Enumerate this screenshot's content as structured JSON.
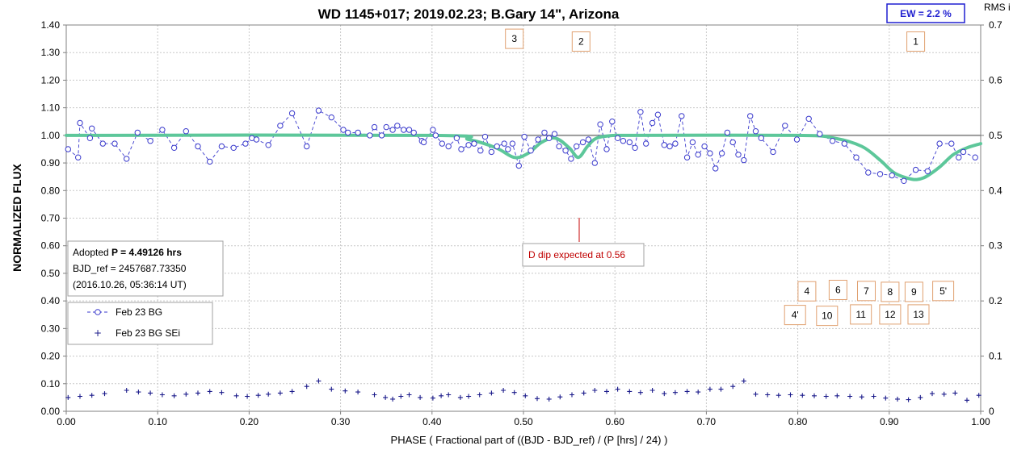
{
  "chart_data": {
    "type": "scatter",
    "title": "WD 1145+017; 2019.02.23; B.Gary 14\", Arizona",
    "xlabel": "PHASE ( Fractional part of ((BJD - BJD_ref) / (P [hrs] / 24) )",
    "ylabel": "NORMALIZED FLUX",
    "y2label": "RMS i",
    "xlim": [
      0,
      1
    ],
    "ylim": [
      0,
      1.4
    ],
    "y2lim": [
      0,
      0.7
    ],
    "x_ticks": [
      "0.00",
      "0.10",
      "0.20",
      "0.30",
      "0.40",
      "0.50",
      "0.60",
      "0.70",
      "0.80",
      "0.90",
      "1.00"
    ],
    "y_ticks": [
      "0.00",
      "0.10",
      "0.20",
      "0.30",
      "0.40",
      "0.50",
      "0.60",
      "0.70",
      "0.80",
      "0.90",
      "1.00",
      "1.10",
      "1.20",
      "1.30",
      "1.40"
    ],
    "y2_ticks": [
      "0",
      "0.1",
      "0.2",
      "0.3",
      "0.4",
      "0.5",
      "0.6",
      "0.7"
    ],
    "grid": true,
    "ew_label": "EW =  2.2 %",
    "info_box": {
      "line1_prefix": "Adopted ",
      "line1_bold": "P = 4.49126 hrs",
      "line2": "BJD_ref = 2457687.73350",
      "line3": "(2016.10.26, 05:36:14 UT)"
    },
    "dip_annotation": {
      "text": "D dip expected at 0.56",
      "x": 0.56
    },
    "dip_labels": [
      {
        "text": "3",
        "x": 0.49,
        "y": 1.35
      },
      {
        "text": "2",
        "x": 0.563,
        "y": 1.34
      },
      {
        "text": "1",
        "x": 0.929,
        "y": 1.34
      },
      {
        "text": "4",
        "x": 0.81,
        "y": 0.435
      },
      {
        "text": "6",
        "x": 0.844,
        "y": 0.44
      },
      {
        "text": "7",
        "x": 0.875,
        "y": 0.436
      },
      {
        "text": "8",
        "x": 0.901,
        "y": 0.433
      },
      {
        "text": "9",
        "x": 0.927,
        "y": 0.433
      },
      {
        "text": "5'",
        "x": 0.959,
        "y": 0.436
      },
      {
        "text": "4'",
        "x": 0.797,
        "y": 0.349
      },
      {
        "text": "10",
        "x": 0.832,
        "y": 0.346
      },
      {
        "text": "11",
        "x": 0.869,
        "y": 0.351
      },
      {
        "text": "12",
        "x": 0.901,
        "y": 0.351
      },
      {
        "text": "13",
        "x": 0.932,
        "y": 0.351
      }
    ],
    "legend": {
      "position": "left",
      "entries": [
        "Feb 23 BG",
        "Feb 23 BG SEi"
      ]
    },
    "reference_line": 1.0,
    "series": [
      {
        "name": "Feb 23 BG",
        "axis": "left",
        "style": "dashed-open-circles",
        "color": "#3a3acc",
        "x": [
          0.002,
          0.013,
          0.015,
          0.026,
          0.028,
          0.04,
          0.053,
          0.066,
          0.078,
          0.092,
          0.105,
          0.118,
          0.131,
          0.144,
          0.157,
          0.17,
          0.183,
          0.196,
          0.203,
          0.208,
          0.221,
          0.234,
          0.247,
          0.263,
          0.276,
          0.29,
          0.303,
          0.308,
          0.319,
          0.332,
          0.337,
          0.345,
          0.35,
          0.357,
          0.362,
          0.369,
          0.375,
          0.38,
          0.389,
          0.391,
          0.401,
          0.404,
          0.411,
          0.418,
          0.427,
          0.432,
          0.44,
          0.446,
          0.453,
          0.458,
          0.465,
          0.471,
          0.479,
          0.483,
          0.488,
          0.495,
          0.501,
          0.508,
          0.516,
          0.523,
          0.528,
          0.534,
          0.539,
          0.546,
          0.552,
          0.558,
          0.565,
          0.571,
          0.578,
          0.584,
          0.591,
          0.597,
          0.603,
          0.609,
          0.616,
          0.622,
          0.628,
          0.634,
          0.641,
          0.647,
          0.654,
          0.66,
          0.666,
          0.673,
          0.679,
          0.685,
          0.691,
          0.698,
          0.704,
          0.71,
          0.717,
          0.723,
          0.729,
          0.735,
          0.741,
          0.748,
          0.754,
          0.76,
          0.773,
          0.786,
          0.799,
          0.812,
          0.824,
          0.838,
          0.851,
          0.864,
          0.877,
          0.89,
          0.903,
          0.916,
          0.929,
          0.942,
          0.955,
          0.968,
          0.976,
          0.981,
          0.994
        ],
        "y": [
          0.95,
          0.92,
          1.045,
          0.99,
          1.025,
          0.97,
          0.97,
          0.915,
          1.01,
          0.98,
          1.02,
          0.955,
          1.015,
          0.96,
          0.905,
          0.96,
          0.955,
          0.97,
          0.99,
          0.985,
          0.965,
          1.035,
          1.08,
          0.96,
          1.09,
          1.065,
          1.02,
          1.01,
          1.01,
          1.0,
          1.03,
          1.0,
          1.03,
          1.02,
          1.035,
          1.02,
          1.02,
          1.01,
          0.98,
          0.975,
          1.02,
          1.0,
          0.97,
          0.96,
          0.99,
          0.95,
          0.965,
          0.97,
          0.945,
          0.995,
          0.94,
          0.96,
          0.97,
          0.95,
          0.97,
          0.89,
          0.995,
          0.945,
          0.985,
          1.01,
          0.99,
          1.005,
          0.96,
          0.945,
          0.915,
          0.96,
          0.975,
          0.985,
          0.9,
          1.04,
          0.95,
          1.05,
          0.99,
          0.98,
          0.975,
          0.955,
          1.085,
          0.97,
          1.045,
          1.075,
          0.965,
          0.96,
          0.97,
          1.07,
          0.92,
          0.975,
          0.93,
          0.96,
          0.935,
          0.88,
          0.935,
          1.01,
          0.975,
          0.93,
          0.91,
          1.07,
          1.015,
          0.99,
          0.94,
          1.035,
          0.985,
          1.06,
          1.005,
          0.98,
          0.97,
          0.92,
          0.865,
          0.86,
          0.855,
          0.835,
          0.875,
          0.87,
          0.97,
          0.97,
          0.92,
          0.94,
          0.92
        ]
      },
      {
        "name": "Feb 23 BG SEi",
        "axis": "right",
        "style": "plus-markers",
        "color": "#1a1a8a",
        "x": [
          0.002,
          0.015,
          0.028,
          0.042,
          0.066,
          0.079,
          0.092,
          0.105,
          0.118,
          0.131,
          0.144,
          0.157,
          0.17,
          0.186,
          0.198,
          0.21,
          0.221,
          0.234,
          0.247,
          0.263,
          0.276,
          0.29,
          0.305,
          0.319,
          0.337,
          0.349,
          0.357,
          0.366,
          0.375,
          0.387,
          0.401,
          0.41,
          0.418,
          0.431,
          0.44,
          0.452,
          0.465,
          0.478,
          0.49,
          0.502,
          0.515,
          0.528,
          0.54,
          0.553,
          0.566,
          0.578,
          0.591,
          0.603,
          0.616,
          0.628,
          0.641,
          0.654,
          0.666,
          0.679,
          0.691,
          0.704,
          0.716,
          0.729,
          0.741,
          0.754,
          0.767,
          0.779,
          0.792,
          0.805,
          0.818,
          0.831,
          0.843,
          0.857,
          0.87,
          0.883,
          0.896,
          0.909,
          0.921,
          0.934,
          0.947,
          0.96,
          0.972,
          0.985,
          0.998
        ],
        "y": [
          0.025,
          0.027,
          0.029,
          0.032,
          0.038,
          0.035,
          0.033,
          0.03,
          0.028,
          0.031,
          0.033,
          0.036,
          0.034,
          0.028,
          0.027,
          0.029,
          0.031,
          0.033,
          0.036,
          0.045,
          0.055,
          0.04,
          0.037,
          0.035,
          0.03,
          0.025,
          0.022,
          0.027,
          0.03,
          0.025,
          0.024,
          0.028,
          0.03,
          0.025,
          0.027,
          0.03,
          0.033,
          0.038,
          0.034,
          0.028,
          0.023,
          0.022,
          0.026,
          0.03,
          0.033,
          0.038,
          0.036,
          0.04,
          0.036,
          0.034,
          0.038,
          0.032,
          0.034,
          0.036,
          0.035,
          0.04,
          0.04,
          0.045,
          0.055,
          0.031,
          0.03,
          0.029,
          0.03,
          0.029,
          0.028,
          0.027,
          0.028,
          0.027,
          0.026,
          0.027,
          0.024,
          0.022,
          0.021,
          0.025,
          0.032,
          0.031,
          0.033,
          0.02,
          0.029
        ]
      },
      {
        "name": "",
        "axis": "left",
        "style": "smooth-model-line",
        "color": "#5dc79a",
        "x": [
          0.0,
          0.4,
          0.44,
          0.47,
          0.49,
          0.505,
          0.52,
          0.535,
          0.55,
          0.56,
          0.57,
          0.58,
          0.6,
          0.62,
          0.8,
          0.84,
          0.87,
          0.89,
          0.905,
          0.92,
          0.93,
          0.94,
          0.955,
          0.97,
          0.985,
          1.0
        ],
        "y": [
          1.0,
          1.0,
          0.985,
          0.955,
          0.92,
          0.935,
          0.975,
          0.99,
          0.955,
          0.92,
          0.96,
          0.99,
          1.0,
          1.0,
          1.0,
          0.99,
          0.96,
          0.91,
          0.865,
          0.845,
          0.84,
          0.85,
          0.885,
          0.93,
          0.955,
          0.97
        ]
      }
    ]
  }
}
